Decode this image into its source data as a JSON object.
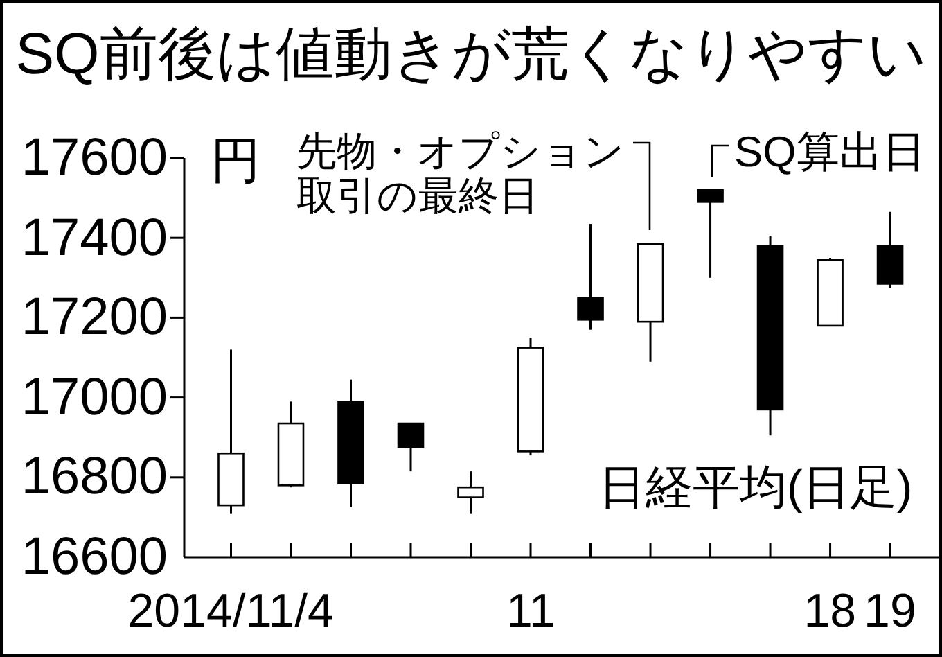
{
  "chart_data": {
    "type": "candlestick",
    "title": "SQ前後は値動きが荒くなりやすい",
    "ylabel": "円",
    "categories": [
      "2014/11/4",
      null,
      null,
      null,
      null,
      "11",
      null,
      null,
      null,
      null,
      "18",
      "19"
    ],
    "ohlc": [
      [
        16730,
        17120,
        16710,
        16860
      ],
      [
        16780,
        16990,
        16775,
        16935
      ],
      [
        16990,
        17045,
        16725,
        16785
      ],
      [
        16935,
        16935,
        16815,
        16875
      ],
      [
        16750,
        16815,
        16710,
        16775
      ],
      [
        16865,
        17150,
        16855,
        17125
      ],
      [
        17250,
        17435,
        17170,
        17195
      ],
      [
        17190,
        17385,
        17090,
        17385
      ],
      [
        17520,
        17520,
        17300,
        17490
      ],
      [
        17380,
        17405,
        16905,
        16970
      ],
      [
        17180,
        17350,
        17180,
        17345
      ],
      [
        17380,
        17465,
        17275,
        17285
      ]
    ],
    "ylim": [
      16600,
      17600
    ],
    "yticks": [
      16600,
      16800,
      17000,
      17200,
      17400,
      17600
    ],
    "grid": false,
    "annotations": [
      "先物・オプション取引の最終日",
      "SQ算出日",
      "日経平均(日足)"
    ]
  }
}
